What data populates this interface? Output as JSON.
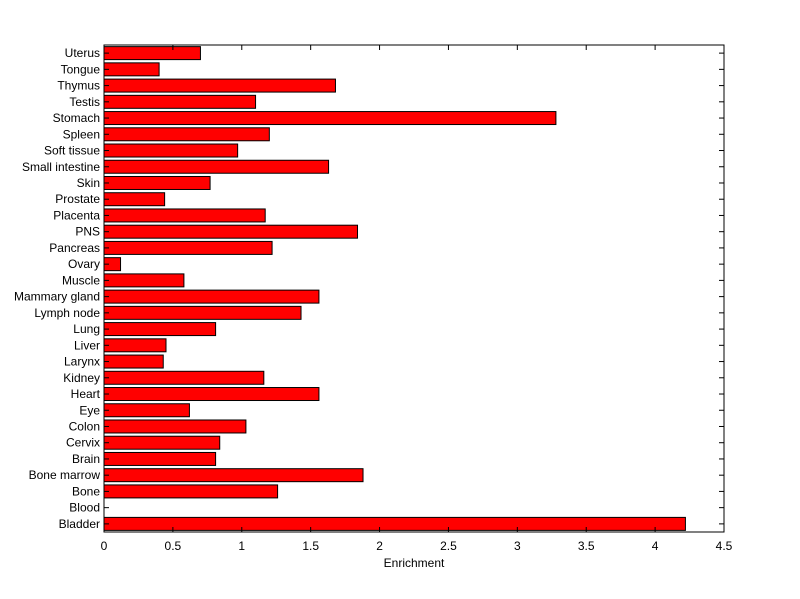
{
  "chart_data": {
    "type": "bar",
    "orientation": "horizontal",
    "title": "",
    "xlabel": "Enrichment",
    "ylabel": "",
    "xlim": [
      0,
      4.5
    ],
    "xticks": [
      "0",
      "0.5",
      "1",
      "1.5",
      "2",
      "2.5",
      "3",
      "3.5",
      "4",
      "4.5"
    ],
    "grid": false,
    "bar_color": "#ff0000",
    "bar_edge_color": "#000000",
    "categories": [
      "Bladder",
      "Blood",
      "Bone",
      "Bone marrow",
      "Brain",
      "Cervix",
      "Colon",
      "Eye",
      "Heart",
      "Kidney",
      "Larynx",
      "Liver",
      "Lung",
      "Lymph node",
      "Mammary gland",
      "Muscle",
      "Ovary",
      "Pancreas",
      "PNS",
      "Placenta",
      "Prostate",
      "Skin",
      "Small intestine",
      "Soft tissue",
      "Spleen",
      "Stomach",
      "Testis",
      "Thymus",
      "Tongue",
      "Uterus"
    ],
    "values": [
      4.22,
      0.0,
      1.26,
      1.88,
      0.81,
      0.84,
      1.03,
      0.62,
      1.56,
      1.16,
      0.43,
      0.45,
      0.81,
      1.43,
      1.56,
      0.58,
      0.12,
      1.22,
      1.84,
      1.17,
      0.44,
      0.77,
      1.63,
      0.97,
      1.2,
      3.28,
      1.1,
      1.68,
      0.4,
      0.7
    ]
  }
}
